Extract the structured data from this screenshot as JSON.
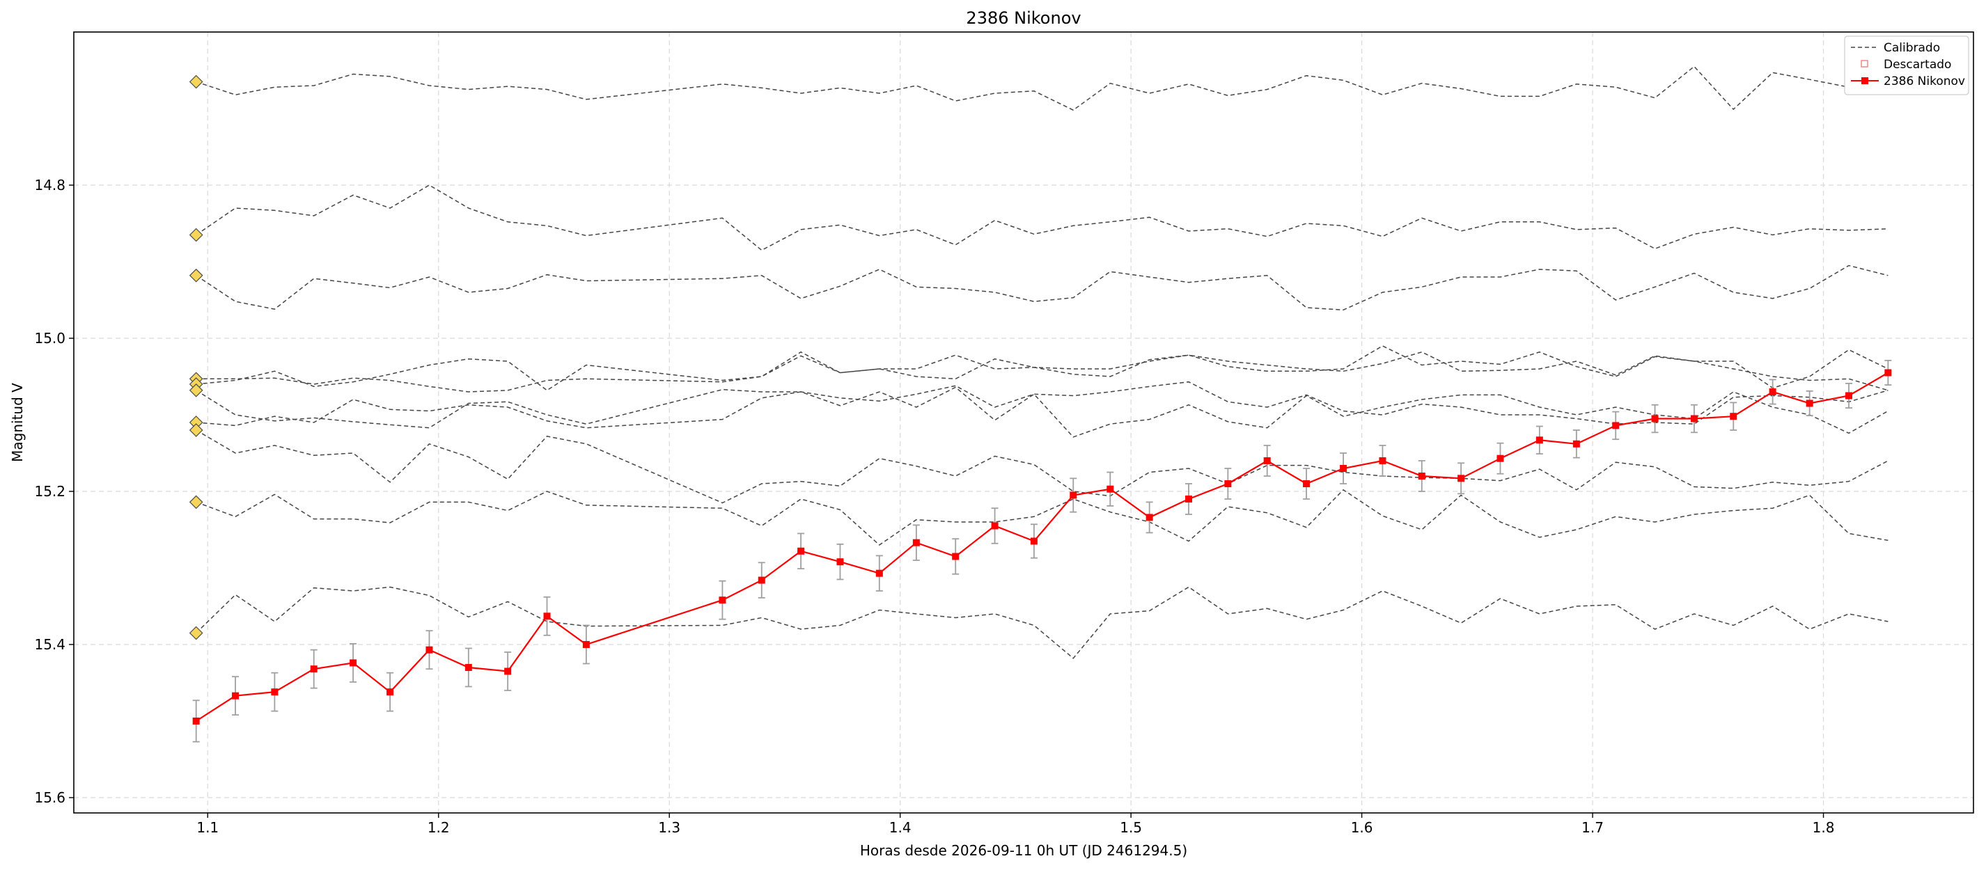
{
  "chart_data": {
    "type": "line",
    "title": "2386 Nikonov",
    "xlabel": "Horas desde 2026-09-11 0h UT (JD 2461294.5)",
    "ylabel": "Magnitud V",
    "xlim": [
      1.042,
      1.865
    ],
    "ylim": [
      15.62,
      14.6
    ],
    "y_inverted": true,
    "grid": true,
    "legend_position": "top-right",
    "x_ticks": [
      1.1,
      1.2,
      1.3,
      1.4,
      1.5,
      1.6,
      1.7,
      1.8
    ],
    "x_tick_labels": [
      "1.1",
      "1.2",
      "1.3",
      "1.4",
      "1.5",
      "1.6",
      "1.7",
      "1.8"
    ],
    "y_ticks": [
      14.8,
      15.0,
      15.2,
      15.4,
      15.6
    ],
    "y_tick_labels": [
      "14.8",
      "15.0",
      "15.2",
      "15.4",
      "15.6"
    ],
    "legend": [
      {
        "label": "Calibrado",
        "style": "dashed",
        "color": "#444444"
      },
      {
        "label": "Descartado",
        "style": "square-open",
        "color": "#f08080"
      },
      {
        "label": "2386 Nikonov",
        "style": "line-square",
        "color": "#ff0000"
      }
    ],
    "comparison_x": [
      1.095,
      1.112,
      1.129,
      1.146,
      1.163,
      1.179,
      1.196,
      1.213,
      1.23,
      1.247,
      1.264,
      1.323,
      1.34,
      1.357,
      1.374,
      1.391,
      1.407,
      1.424,
      1.441,
      1.458,
      1.475,
      1.491,
      1.508,
      1.525,
      1.542,
      1.559,
      1.576,
      1.592,
      1.609,
      1.626,
      1.643,
      1.66,
      1.677,
      1.693,
      1.71,
      1.727,
      1.744,
      1.761,
      1.778,
      1.794,
      1.811,
      1.828
    ],
    "comparison_series": [
      {
        "values": [
          14.665,
          14.682,
          14.672,
          14.67,
          14.655,
          14.658,
          14.67,
          14.675,
          14.671,
          14.675,
          14.688,
          14.668,
          14.673,
          14.68,
          14.673,
          14.68,
          14.67,
          14.69,
          14.68,
          14.677,
          14.702,
          14.667,
          14.68,
          14.668,
          14.683,
          14.675,
          14.657,
          14.663,
          14.682,
          14.667,
          14.674,
          14.684,
          14.684,
          14.668,
          14.672,
          14.686,
          14.645,
          14.701,
          14.653,
          14.662,
          14.672,
          14.658
        ]
      },
      {
        "values": [
          14.865,
          14.83,
          14.833,
          14.84,
          14.813,
          14.83,
          14.8,
          14.83,
          14.848,
          14.853,
          14.866,
          14.843,
          14.885,
          14.858,
          14.852,
          14.866,
          14.858,
          14.878,
          14.846,
          14.864,
          14.853,
          14.848,
          14.842,
          14.86,
          14.857,
          14.867,
          14.85,
          14.853,
          14.867,
          14.843,
          14.86,
          14.848,
          14.848,
          14.858,
          14.856,
          14.883,
          14.864,
          14.855,
          14.865,
          14.857,
          14.859,
          14.857
        ]
      },
      {
        "values": [
          14.918,
          14.952,
          14.962,
          14.922,
          14.928,
          14.934,
          14.92,
          14.94,
          14.935,
          14.917,
          14.925,
          14.922,
          14.918,
          14.948,
          14.932,
          14.91,
          14.933,
          14.935,
          14.94,
          14.952,
          14.947,
          14.913,
          14.92,
          14.927,
          14.922,
          14.918,
          14.96,
          14.963,
          14.94,
          14.933,
          14.92,
          14.92,
          14.91,
          14.912,
          14.95,
          14.933,
          14.915,
          14.94,
          14.948,
          14.935,
          14.905,
          14.918
        ]
      },
      {
        "values": [
          15.053,
          15.053,
          15.052,
          15.06,
          15.052,
          15.055,
          15.063,
          15.07,
          15.068,
          15.055,
          15.053,
          15.057,
          15.05,
          15.018,
          15.045,
          15.04,
          15.04,
          15.022,
          15.04,
          15.038,
          15.04,
          15.04,
          15.03,
          15.022,
          15.03,
          15.035,
          15.04,
          15.043,
          15.033,
          15.018,
          15.043,
          15.042,
          15.04,
          15.03,
          15.048,
          15.023,
          15.03,
          15.04,
          15.05,
          15.055,
          15.053,
          15.068
        ]
      },
      {
        "values": [
          15.06,
          15.055,
          15.043,
          15.063,
          15.057,
          15.047,
          15.035,
          15.027,
          15.03,
          15.068,
          15.035,
          15.055,
          15.05,
          15.023,
          15.045,
          15.04,
          15.05,
          15.053,
          15.027,
          15.038,
          15.047,
          15.05,
          15.028,
          15.022,
          15.037,
          15.043,
          15.043,
          15.04,
          15.01,
          15.035,
          15.03,
          15.034,
          15.018,
          15.037,
          15.05,
          15.024,
          15.03,
          15.03,
          15.065,
          15.05,
          15.015,
          15.04
        ]
      },
      {
        "values": [
          15.068,
          15.1,
          15.108,
          15.104,
          15.109,
          15.113,
          15.117,
          15.085,
          15.083,
          15.1,
          15.112,
          15.067,
          15.07,
          15.07,
          15.078,
          15.082,
          15.073,
          15.062,
          15.09,
          15.073,
          15.075,
          15.07,
          15.063,
          15.057,
          15.083,
          15.09,
          15.074,
          15.095,
          15.1,
          15.086,
          15.09,
          15.1,
          15.1,
          15.105,
          15.112,
          15.11,
          15.112,
          15.077,
          15.075,
          15.077,
          15.083,
          15.068
        ]
      },
      {
        "values": [
          15.11,
          15.114,
          15.102,
          15.11,
          15.08,
          15.093,
          15.095,
          15.087,
          15.09,
          15.108,
          15.117,
          15.106,
          15.078,
          15.07,
          15.088,
          15.07,
          15.09,
          15.064,
          15.107,
          15.073,
          15.129,
          15.112,
          15.106,
          15.087,
          15.109,
          15.117,
          15.075,
          15.102,
          15.09,
          15.08,
          15.074,
          15.074,
          15.09,
          15.1,
          15.09,
          15.1,
          15.105,
          15.07,
          15.09,
          15.1,
          15.124,
          15.095
        ]
      },
      {
        "values": [
          15.12,
          15.15,
          15.14,
          15.153,
          15.15,
          15.188,
          15.138,
          15.155,
          15.184,
          15.128,
          15.138,
          15.215,
          15.19,
          15.187,
          15.193,
          15.157,
          15.167,
          15.18,
          15.154,
          15.165,
          15.2,
          15.206,
          15.175,
          15.17,
          15.19,
          15.166,
          15.166,
          15.175,
          15.18,
          15.182,
          15.183,
          15.186,
          15.171,
          15.198,
          15.162,
          15.168,
          15.194,
          15.196,
          15.188,
          15.192,
          15.187,
          15.16
        ]
      },
      {
        "values": [
          15.214,
          15.233,
          15.204,
          15.236,
          15.236,
          15.241,
          15.214,
          15.214,
          15.225,
          15.2,
          15.218,
          15.222,
          15.245,
          15.21,
          15.224,
          15.27,
          15.237,
          15.24,
          15.24,
          15.233,
          15.21,
          15.227,
          15.24,
          15.265,
          15.22,
          15.228,
          15.247,
          15.198,
          15.232,
          15.25,
          15.205,
          15.24,
          15.26,
          15.25,
          15.233,
          15.24,
          15.23,
          15.225,
          15.222,
          15.205,
          15.255,
          15.264
        ]
      },
      {
        "values": [
          15.385,
          15.335,
          15.37,
          15.326,
          15.33,
          15.325,
          15.336,
          15.364,
          15.344,
          15.37,
          15.376,
          15.375,
          15.365,
          15.38,
          15.375,
          15.355,
          15.36,
          15.365,
          15.36,
          15.375,
          15.418,
          15.36,
          15.356,
          15.325,
          15.36,
          15.353,
          15.367,
          15.355,
          15.33,
          15.35,
          15.372,
          15.34,
          15.36,
          15.35,
          15.348,
          15.38,
          15.36,
          15.375,
          15.35,
          15.38,
          15.36,
          15.37
        ]
      }
    ],
    "reference_markers": {
      "x": 1.095,
      "values": [
        14.665,
        14.865,
        14.918,
        15.053,
        15.06,
        15.068,
        15.11,
        15.12,
        15.214,
        15.385
      ],
      "color": "#f5d65a"
    },
    "series": [
      {
        "name": "2386 Nikonov",
        "color": "#ff0000",
        "x": [
          1.095,
          1.112,
          1.129,
          1.146,
          1.163,
          1.179,
          1.196,
          1.213,
          1.23,
          1.247,
          1.264,
          1.323,
          1.34,
          1.357,
          1.374,
          1.391,
          1.407,
          1.424,
          1.441,
          1.458,
          1.475,
          1.491,
          1.508,
          1.525,
          1.542,
          1.559,
          1.576,
          1.592,
          1.609,
          1.626,
          1.643,
          1.66,
          1.677,
          1.693,
          1.71,
          1.727,
          1.744,
          1.761,
          1.778,
          1.794,
          1.811,
          1.828
        ],
        "values": [
          15.5,
          15.467,
          15.462,
          15.432,
          15.424,
          15.462,
          15.407,
          15.43,
          15.435,
          15.363,
          15.4,
          15.342,
          15.316,
          15.278,
          15.292,
          15.307,
          15.267,
          15.285,
          15.245,
          15.265,
          15.205,
          15.197,
          15.234,
          15.21,
          15.19,
          15.16,
          15.19,
          15.17,
          15.16,
          15.18,
          15.183,
          15.157,
          15.133,
          15.138,
          15.114,
          15.105,
          15.105,
          15.102,
          15.07,
          15.085,
          15.075,
          15.045
        ],
        "errors": [
          0.027,
          0.025,
          0.025,
          0.025,
          0.025,
          0.025,
          0.025,
          0.025,
          0.025,
          0.025,
          0.025,
          0.025,
          0.023,
          0.023,
          0.023,
          0.023,
          0.023,
          0.023,
          0.023,
          0.022,
          0.022,
          0.022,
          0.02,
          0.02,
          0.02,
          0.02,
          0.02,
          0.02,
          0.02,
          0.02,
          0.02,
          0.02,
          0.018,
          0.018,
          0.018,
          0.018,
          0.018,
          0.018,
          0.016,
          0.016,
          0.016,
          0.016
        ]
      }
    ]
  }
}
